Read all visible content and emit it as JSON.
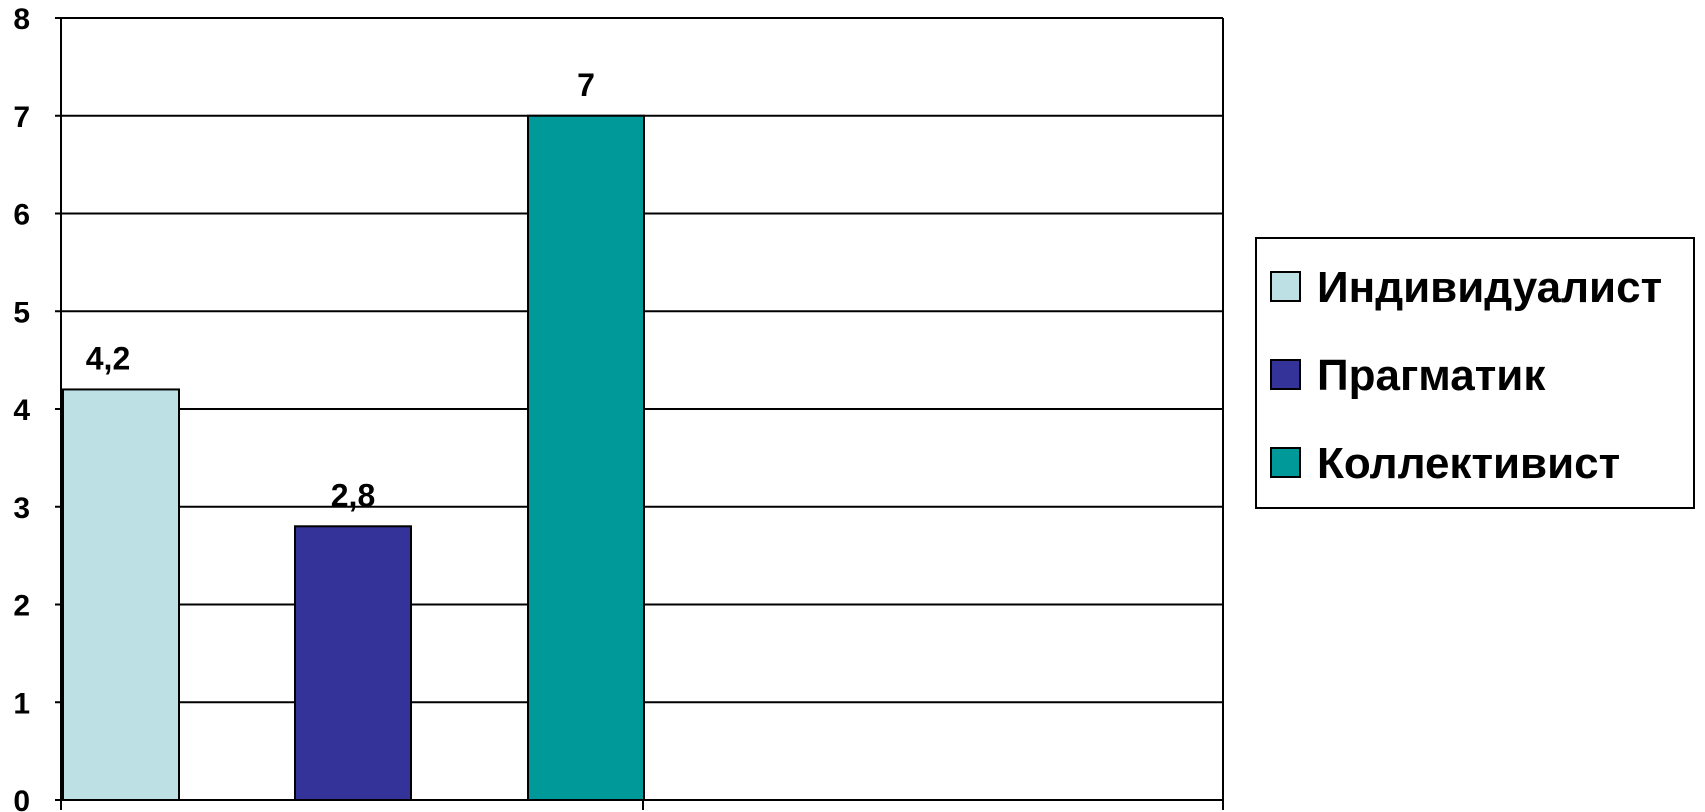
{
  "chart_data": {
    "type": "bar",
    "title": "",
    "xlabel": "",
    "ylabel": "",
    "ylim": [
      0,
      8
    ],
    "yticks": [
      0,
      1,
      2,
      3,
      4,
      5,
      6,
      7,
      8
    ],
    "grid": true,
    "legend_position": "right",
    "series": [
      {
        "name": "Индивидуалист",
        "value": 4.2,
        "label": "4,2",
        "color": "#BCE0E3"
      },
      {
        "name": "Прагматик",
        "value": 2.8,
        "label": "2,8",
        "color": "#333399"
      },
      {
        "name": "Коллективист",
        "value": 7,
        "label": "7",
        "color": "#009999"
      }
    ]
  }
}
